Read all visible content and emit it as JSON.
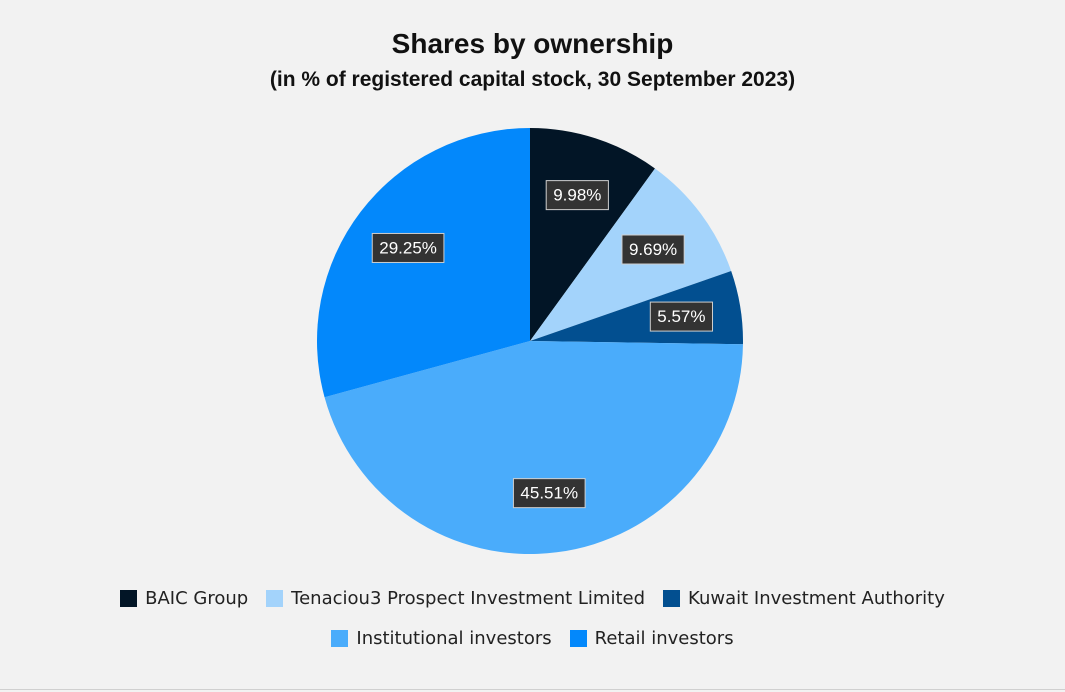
{
  "chart_data": {
    "type": "pie",
    "title": "Shares by ownership",
    "subtitle": "(in % of registered capital stock, 30 September 2023)",
    "slices": [
      {
        "label": "BAIC Group",
        "value": 9.98,
        "display": "9.98%",
        "color": "#021526"
      },
      {
        "label": "Tenaciou3 Prospect Investment Limited",
        "value": 9.69,
        "display": "9.69%",
        "color": "#a3d3fb"
      },
      {
        "label": "Kuwait Investment Authority",
        "value": 5.57,
        "display": "5.57%",
        "color": "#024f90"
      },
      {
        "label": "Institutional investors",
        "value": 45.51,
        "display": "45.51%",
        "color": "#4aacfb"
      },
      {
        "label": "Retail investors",
        "value": 29.25,
        "display": "29.25%",
        "color": "#0388fb"
      }
    ],
    "start_angle": "12 o'clock",
    "direction": "clockwise",
    "data_label_style": {
      "background": "#333333",
      "text_color": "#ffffff"
    },
    "legend_position": "bottom"
  }
}
